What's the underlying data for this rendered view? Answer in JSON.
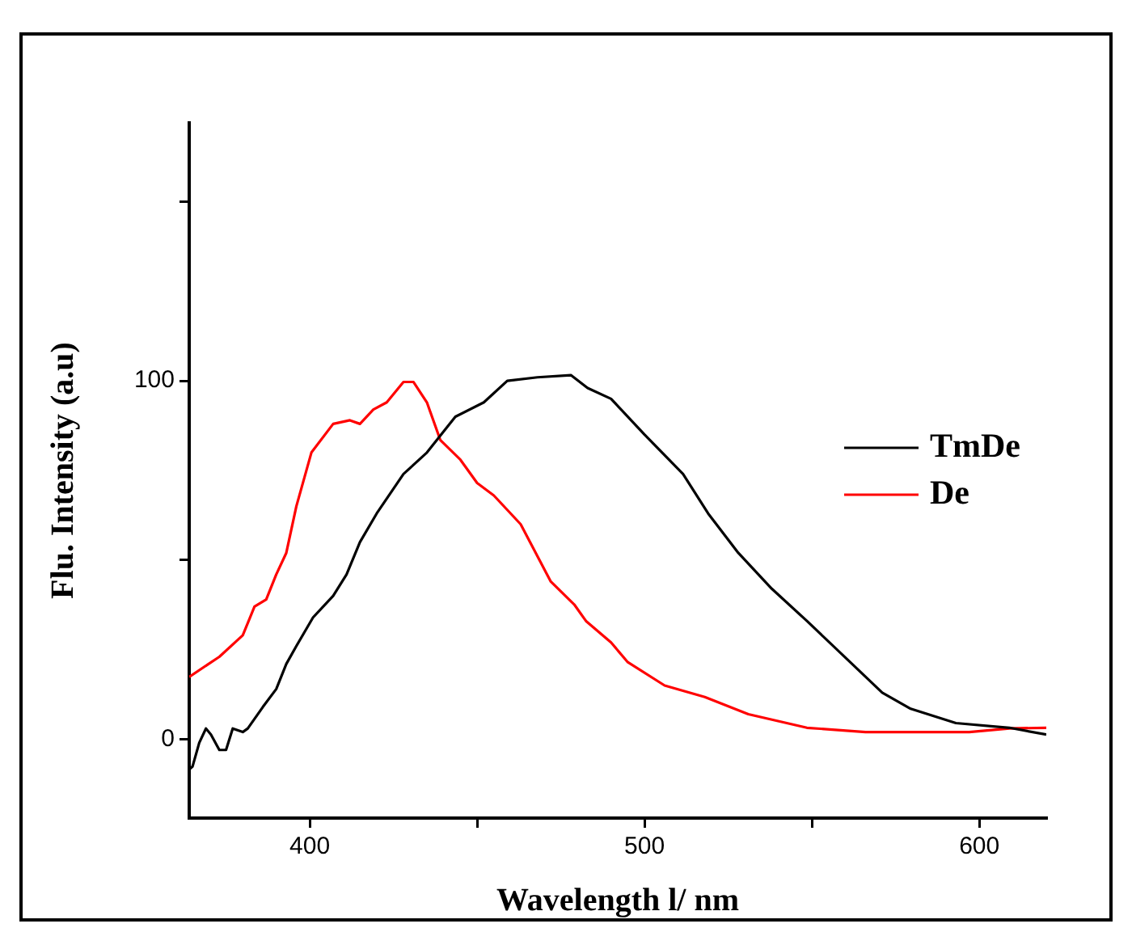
{
  "chart_data": {
    "type": "line",
    "xlabel": "Wavelength l/ nm",
    "ylabel": "Flu. Intensity (a.u)",
    "xlim": [
      364,
      620
    ],
    "xticks": [
      400,
      {
        "value": 450,
        "label": null
      },
      500,
      {
        "value": 550,
        "label": null
      },
      600
    ],
    "ylim": [
      -22,
      172
    ],
    "yticks": [
      0,
      {
        "value": 50,
        "label": null
      },
      100,
      {
        "value": 150,
        "label": null
      }
    ],
    "grid": false,
    "legend": "right",
    "marker": "none",
    "line_style": "solid",
    "series": [
      {
        "name": "TmDe",
        "color": "#000000",
        "x": [
          364,
          365,
          367,
          369,
          370.5,
          373,
          375,
          377,
          380,
          381.5,
          386,
          390,
          393,
          396,
          401,
          407,
          411,
          415,
          420,
          428,
          435,
          443.5,
          452,
          459,
          468,
          478,
          483,
          490,
          500,
          511.5,
          519,
          528,
          538,
          548.5,
          562,
          571,
          579.5,
          593,
          609,
          620
        ],
        "values": [
          -8.4,
          -7.6,
          -1,
          3,
          1.3,
          -3,
          -3,
          3,
          2,
          3,
          9,
          14,
          21,
          26,
          34,
          40,
          46,
          55,
          63,
          74,
          80,
          90,
          94,
          100,
          101,
          101.6,
          98,
          95,
          85,
          74,
          63,
          52,
          42,
          33,
          21,
          13,
          8.5,
          4.5,
          3.2,
          1.3
        ]
      },
      {
        "name": "De",
        "color": "#ff0000",
        "x": [
          364,
          373,
          380,
          383.5,
          387,
          390,
          393,
          396,
          400.5,
          407,
          412,
          415,
          419,
          423,
          428,
          431,
          435,
          439,
          445,
          450,
          455,
          459,
          463,
          472,
          479,
          482.5,
          490,
          495,
          506,
          518,
          531,
          548.5,
          566,
          597,
          609,
          620
        ],
        "values": [
          17.4,
          23,
          29,
          37,
          39,
          46,
          52,
          65,
          80,
          88,
          89,
          88,
          92,
          94,
          99.7,
          99.7,
          94,
          83.5,
          78,
          71.5,
          68,
          64,
          60,
          44,
          37.6,
          33,
          27,
          21.5,
          15,
          11.8,
          7,
          3.2,
          2,
          2,
          3,
          3.2
        ]
      }
    ]
  }
}
